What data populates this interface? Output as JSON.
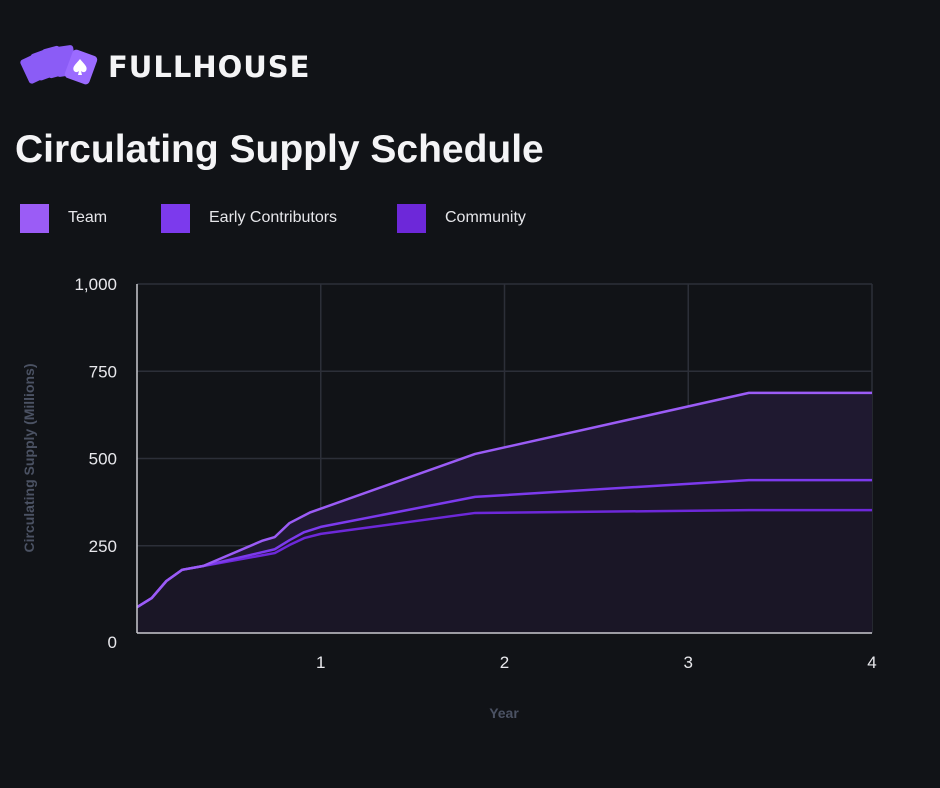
{
  "brand": {
    "name": "FULLHOUSE",
    "logo_icon": "playing-cards-spade-icon"
  },
  "chart_data": {
    "type": "area",
    "title": "Circulating Supply Schedule",
    "xlabel": "Year",
    "ylabel": "Circulating Supply (Millions)",
    "xlim": [
      0,
      4
    ],
    "ylim": [
      0,
      1000
    ],
    "xticks": [
      1,
      2,
      3,
      4
    ],
    "xtick_labels": [
      "1",
      "2",
      "3",
      "4"
    ],
    "yticks": [
      0,
      250,
      500,
      750,
      1000
    ],
    "ytick_labels": [
      "0",
      "250",
      "500",
      "750",
      "1,000"
    ],
    "grid": true,
    "legend_position": "top-left",
    "series": [
      {
        "name": "Team",
        "color": "#9b5cf6",
        "x": [
          0,
          0.08,
          0.16,
          0.245,
          0.36,
          0.68,
          0.75,
          0.83,
          0.94,
          1.84,
          3.33,
          4
        ],
        "y": [
          74,
          100,
          149,
          181,
          192,
          264,
          275,
          315,
          345,
          513,
          688,
          688
        ]
      },
      {
        "name": "Early Contributors",
        "color": "#7c3aed",
        "x": [
          0,
          0.08,
          0.16,
          0.245,
          0.36,
          0.75,
          0.83,
          0.91,
          1.0,
          1.84,
          3.33,
          4
        ],
        "y": [
          74,
          100,
          149,
          181,
          192,
          240,
          266,
          289,
          304,
          390,
          438,
          438
        ]
      },
      {
        "name": "Community",
        "color": "#6d28d9",
        "x": [
          0,
          0.08,
          0.16,
          0.245,
          0.36,
          0.75,
          0.83,
          0.91,
          1.0,
          1.84,
          3.33,
          4
        ],
        "y": [
          74,
          100,
          149,
          181,
          192,
          229,
          252,
          272,
          284,
          344,
          352,
          352
        ]
      }
    ]
  }
}
